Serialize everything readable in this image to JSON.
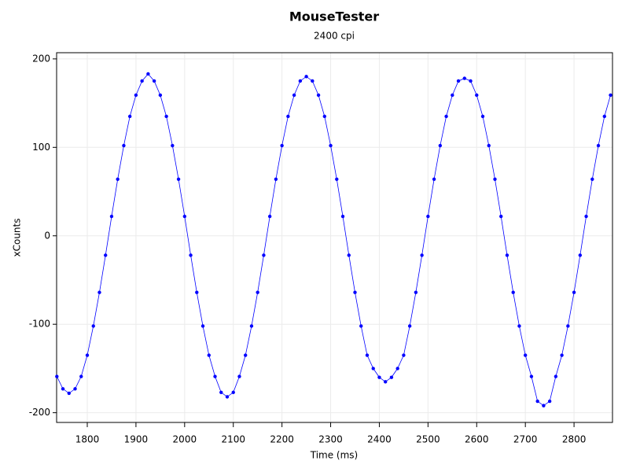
{
  "chart_data": {
    "type": "scatter",
    "title": "MouseTester",
    "subtitle": "2400 cpi",
    "x_label": "Time (ms)",
    "y_label": "xCounts",
    "xlim": [
      1737,
      2879
    ],
    "xticks": [
      1800,
      1900,
      2000,
      2100,
      2200,
      2300,
      2400,
      2500,
      2600,
      2700,
      2800
    ],
    "ylim": [
      -211,
      207
    ],
    "yticks": [
      -200,
      -100,
      0,
      100,
      200
    ],
    "grid": true,
    "series": [
      {
        "color": "#0000ff",
        "x": [
          1737.5,
          1750,
          1762.5,
          1775,
          1787.5,
          1800,
          1812.5,
          1825,
          1837.5,
          1850,
          1862.5,
          1875,
          1887.5,
          1900,
          1912.5,
          1925,
          1937.5,
          1950,
          1962.5,
          1975,
          1987.5,
          2000,
          2012.5,
          2025,
          2037.5,
          2050,
          2062.5,
          2075,
          2087.5,
          2100,
          2112.5,
          2125,
          2137.5,
          2150,
          2162.5,
          2175,
          2187.5,
          2200,
          2212.5,
          2225,
          2237.5,
          2250,
          2262.5,
          2275,
          2287.5,
          2300,
          2312.5,
          2325,
          2337.5,
          2350,
          2362.5,
          2375,
          2387.5,
          2400,
          2412.5,
          2425,
          2437.5,
          2450,
          2462.5,
          2475,
          2487.5,
          2500,
          2512.5,
          2525,
          2537.5,
          2550,
          2562.5,
          2575,
          2587.5,
          2600,
          2612.5,
          2625,
          2637.5,
          2650,
          2662.5,
          2675,
          2687.5,
          2700,
          2712.5,
          2725,
          2737.5,
          2750,
          2762.5,
          2775,
          2787.5,
          2800,
          2812.5,
          2825,
          2837.5,
          2850,
          2862.5,
          2875
        ],
        "values": [
          -159,
          -173,
          -178,
          -173,
          -159,
          -135,
          -102,
          -64,
          -22,
          22,
          64,
          102,
          135,
          159,
          175,
          183,
          175,
          159,
          135,
          102,
          64,
          22,
          -22,
          -64,
          -102,
          -135,
          -159,
          -177,
          -182,
          -177,
          -159,
          -135,
          -102,
          -64,
          -22,
          22,
          64,
          102,
          135,
          159,
          175,
          180,
          175,
          159,
          135,
          102,
          64,
          22,
          -22,
          -64,
          -102,
          -135,
          -150,
          -160,
          -165,
          -160,
          -150,
          -135,
          -102,
          -64,
          -22,
          22,
          64,
          102,
          135,
          159,
          175,
          178,
          175,
          159,
          135,
          102,
          64,
          22,
          -22,
          -64,
          -102,
          -135,
          -159,
          -187,
          -192,
          -187,
          -159,
          -135,
          -102,
          -64,
          -22,
          22,
          64,
          102,
          135,
          159
        ]
      }
    ]
  }
}
